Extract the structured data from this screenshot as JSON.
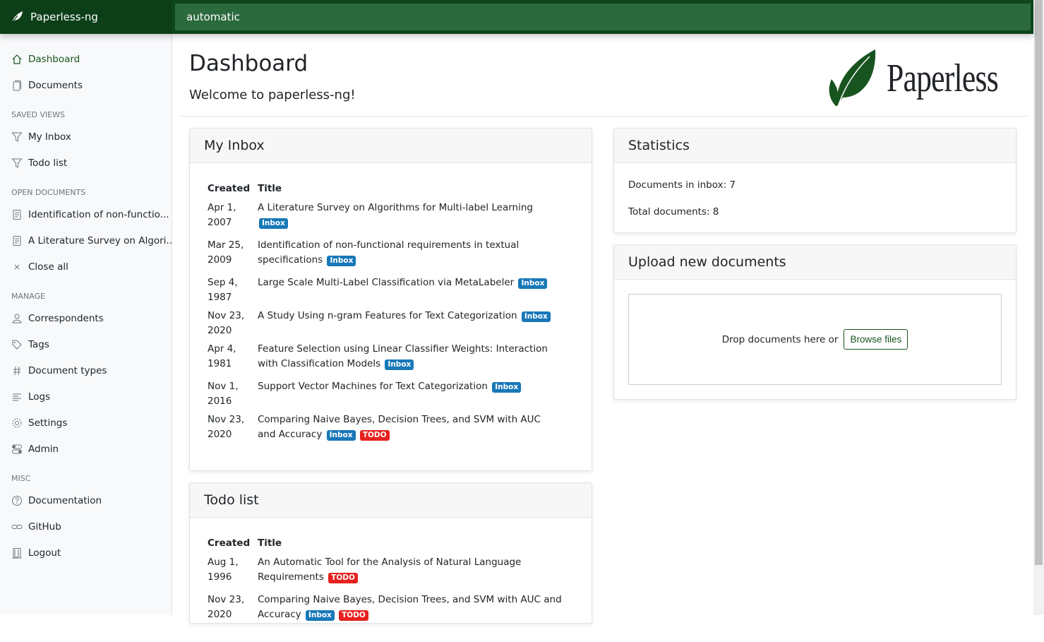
{
  "app": {
    "name": "Paperless-ng",
    "search_value": "automatic"
  },
  "sidebar": {
    "main": [
      {
        "label": "Dashboard",
        "icon": "house-icon",
        "active": true
      },
      {
        "label": "Documents",
        "icon": "files-icon"
      }
    ],
    "sections": [
      {
        "title": "SAVED VIEWS",
        "items": [
          {
            "label": "My Inbox",
            "icon": "funnel-icon"
          },
          {
            "label": "Todo list",
            "icon": "funnel-icon"
          }
        ]
      },
      {
        "title": "OPEN DOCUMENTS",
        "items": [
          {
            "label": "Identification of non-functio...",
            "icon": "file-text-icon"
          },
          {
            "label": "A Literature Survey on Algori...",
            "icon": "file-text-icon"
          },
          {
            "label": "Close all",
            "icon": "x-icon"
          }
        ]
      },
      {
        "title": "MANAGE",
        "items": [
          {
            "label": "Correspondents",
            "icon": "person-icon"
          },
          {
            "label": "Tags",
            "icon": "tags-icon"
          },
          {
            "label": "Document types",
            "icon": "hash-icon"
          },
          {
            "label": "Logs",
            "icon": "text-left-icon"
          },
          {
            "label": "Settings",
            "icon": "gear-icon"
          },
          {
            "label": "Admin",
            "icon": "toggles-icon"
          }
        ]
      },
      {
        "title": "MISC",
        "items": [
          {
            "label": "Documentation",
            "icon": "question-circle-icon"
          },
          {
            "label": "GitHub",
            "icon": "link-icon"
          },
          {
            "label": "Logout",
            "icon": "door-icon"
          }
        ]
      }
    ]
  },
  "page": {
    "title": "Dashboard",
    "welcome": "Welcome to paperless-ng!",
    "logo_text": "Paperless"
  },
  "colors": {
    "inbox": "#1878b8",
    "todo": "#e6211e",
    "brand": "#17541f"
  },
  "inbox": {
    "title": "My Inbox",
    "col_created": "Created",
    "col_title": "Title",
    "rows": [
      {
        "d1": "Apr 1,",
        "d2": "2007",
        "title": "A Literature Survey on Algorithms for Multi-label Learning",
        "tags": [
          "Inbox"
        ]
      },
      {
        "d1": "Mar 25,",
        "d2": "2009",
        "title": "Identification of non-functional requirements in textual specifications",
        "tags": [
          "Inbox"
        ]
      },
      {
        "d1": "Sep 4,",
        "d2": "1987",
        "title": "Large Scale Multi-Label Classification via MetaLabeler",
        "tags": [
          "Inbox"
        ]
      },
      {
        "d1": "Nov 23,",
        "d2": "2020",
        "title": "A Study Using n-gram Features for Text Categorization",
        "tags": [
          "Inbox"
        ]
      },
      {
        "d1": "Apr 4,",
        "d2": "1981",
        "title": "Feature Selection using Linear Classifier Weights: Interaction with Classification Models",
        "tags": [
          "Inbox"
        ]
      },
      {
        "d1": "Nov 1,",
        "d2": "2016",
        "title": "Support Vector Machines for Text Categorization",
        "tags": [
          "Inbox"
        ]
      },
      {
        "d1": "Nov 23,",
        "d2": "2020",
        "title": "Comparing Naive Bayes, Decision Trees, and SVM with AUC and Accuracy",
        "tags": [
          "Inbox",
          "TODO"
        ]
      }
    ]
  },
  "todo": {
    "title": "Todo list",
    "col_created": "Created",
    "col_title": "Title",
    "rows": [
      {
        "d1": "Aug 1,",
        "d2": "1996",
        "title": "An Automatic Tool for the Analysis of Natural Language Requirements",
        "tags": [
          "TODO"
        ]
      },
      {
        "d1": "Nov 23,",
        "d2": "2020",
        "title": "Comparing Naive Bayes, Decision Trees, and SVM with AUC and Accuracy",
        "tags": [
          "Inbox",
          "TODO"
        ]
      }
    ]
  },
  "stats": {
    "title": "Statistics",
    "inbox": "Documents in inbox: 7",
    "total": "Total documents: 8"
  },
  "upload": {
    "title": "Upload new documents",
    "drop_text": "Drop documents here or",
    "browse": "Browse files"
  }
}
